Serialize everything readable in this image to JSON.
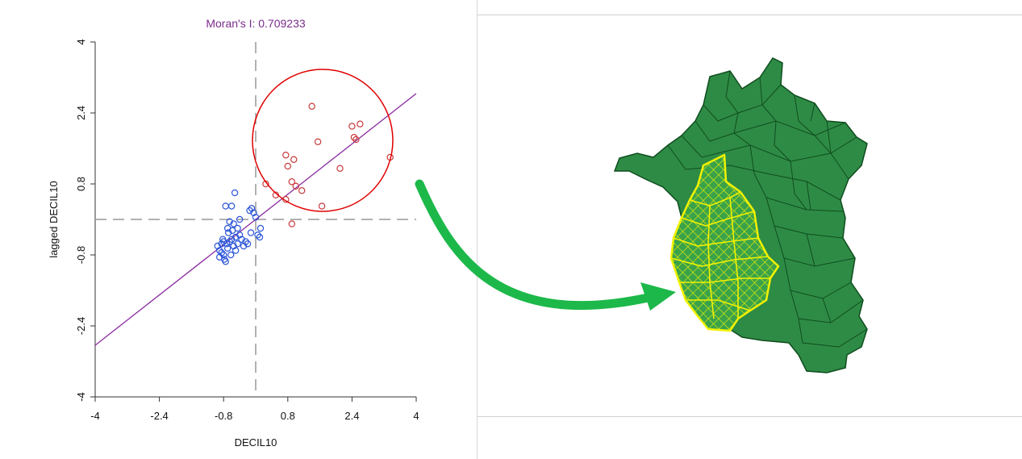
{
  "chart_data": {
    "type": "scatter",
    "title": "Moran's I: 0.709233",
    "xlabel": "DECIL10",
    "ylabel": "lagged DECIL10",
    "xlim": [
      -4,
      4
    ],
    "ylim": [
      -4,
      4
    ],
    "xticks": [
      "-4",
      "-2.4",
      "-0.8",
      "0.8",
      "2.4",
      "4"
    ],
    "yticks": [
      "-4",
      "-2.4",
      "-0.8",
      "0.8",
      "2.4",
      "4"
    ],
    "reference_lines": {
      "x": 0,
      "y": 0,
      "style": "dashed"
    },
    "regression": {
      "slope": 0.709233,
      "intercept": 0
    },
    "colors": {
      "low_points": "#2b55d8",
      "high_points": "#c83c3c",
      "regression": "#8a2aa0",
      "title": "#7a2c8c",
      "highlight_circle": "#e00000"
    },
    "series": [
      {
        "color": "#2b55d8",
        "points": [
          [
            -0.95,
            -0.6
          ],
          [
            -0.9,
            -0.7
          ],
          [
            -0.85,
            -0.75
          ],
          [
            -0.8,
            -0.8
          ],
          [
            -0.78,
            -0.9
          ],
          [
            -0.75,
            -0.95
          ],
          [
            -0.7,
            -0.65
          ],
          [
            -0.72,
            -0.55
          ],
          [
            -0.65,
            -0.5
          ],
          [
            -0.6,
            -0.45
          ],
          [
            -0.55,
            -0.6
          ],
          [
            -0.5,
            -0.4
          ],
          [
            -0.45,
            -0.55
          ],
          [
            -0.4,
            -0.35
          ],
          [
            -0.5,
            -0.7
          ],
          [
            -0.62,
            -0.8
          ],
          [
            -0.68,
            -0.3
          ],
          [
            -0.58,
            -0.25
          ],
          [
            -0.45,
            -0.2
          ],
          [
            -0.35,
            -0.45
          ],
          [
            -0.3,
            -0.6
          ],
          [
            -0.25,
            -0.5
          ],
          [
            -0.8,
            -0.5
          ],
          [
            -0.85,
            -0.55
          ],
          [
            -0.7,
            -0.2
          ],
          [
            -0.55,
            -0.1
          ],
          [
            -0.6,
            0.3
          ],
          [
            -0.65,
            -0.05
          ],
          [
            -0.4,
            0.0
          ],
          [
            -0.2,
            -0.55
          ],
          [
            -0.12,
            -0.3
          ],
          [
            -0.05,
            0.15
          ],
          [
            0.0,
            0.05
          ],
          [
            0.05,
            -0.35
          ],
          [
            0.1,
            -0.4
          ],
          [
            0.12,
            -0.2
          ],
          [
            -0.15,
            0.2
          ],
          [
            -0.1,
            0.25
          ],
          [
            -0.75,
            0.3
          ],
          [
            -0.52,
            0.6
          ],
          [
            -0.9,
            -0.85
          ],
          [
            -0.82,
            -0.45
          ]
        ]
      },
      {
        "color": "#c83c3c",
        "points": [
          [
            0.25,
            0.8
          ],
          [
            0.5,
            0.55
          ],
          [
            0.75,
            1.45
          ],
          [
            0.8,
            1.2
          ],
          [
            0.9,
            0.85
          ],
          [
            0.95,
            1.35
          ],
          [
            1.0,
            0.75
          ],
          [
            1.15,
            0.65
          ],
          [
            1.4,
            2.55
          ],
          [
            1.55,
            1.75
          ],
          [
            1.65,
            0.3
          ],
          [
            2.1,
            1.15
          ],
          [
            2.4,
            2.1
          ],
          [
            2.45,
            1.85
          ],
          [
            2.5,
            1.8
          ],
          [
            2.6,
            2.15
          ],
          [
            3.35,
            1.4
          ],
          [
            0.75,
            0.45
          ],
          [
            0.9,
            -0.1
          ]
        ]
      }
    ]
  },
  "annotations": {
    "highlight_circle": "high-high cluster",
    "arrow": "green-arrow",
    "map": {
      "base_color": "#2e8b45",
      "border_color": "#0f4d1f",
      "cluster_fill": "#3aa34a",
      "cluster_outline": "#f2f200"
    }
  }
}
